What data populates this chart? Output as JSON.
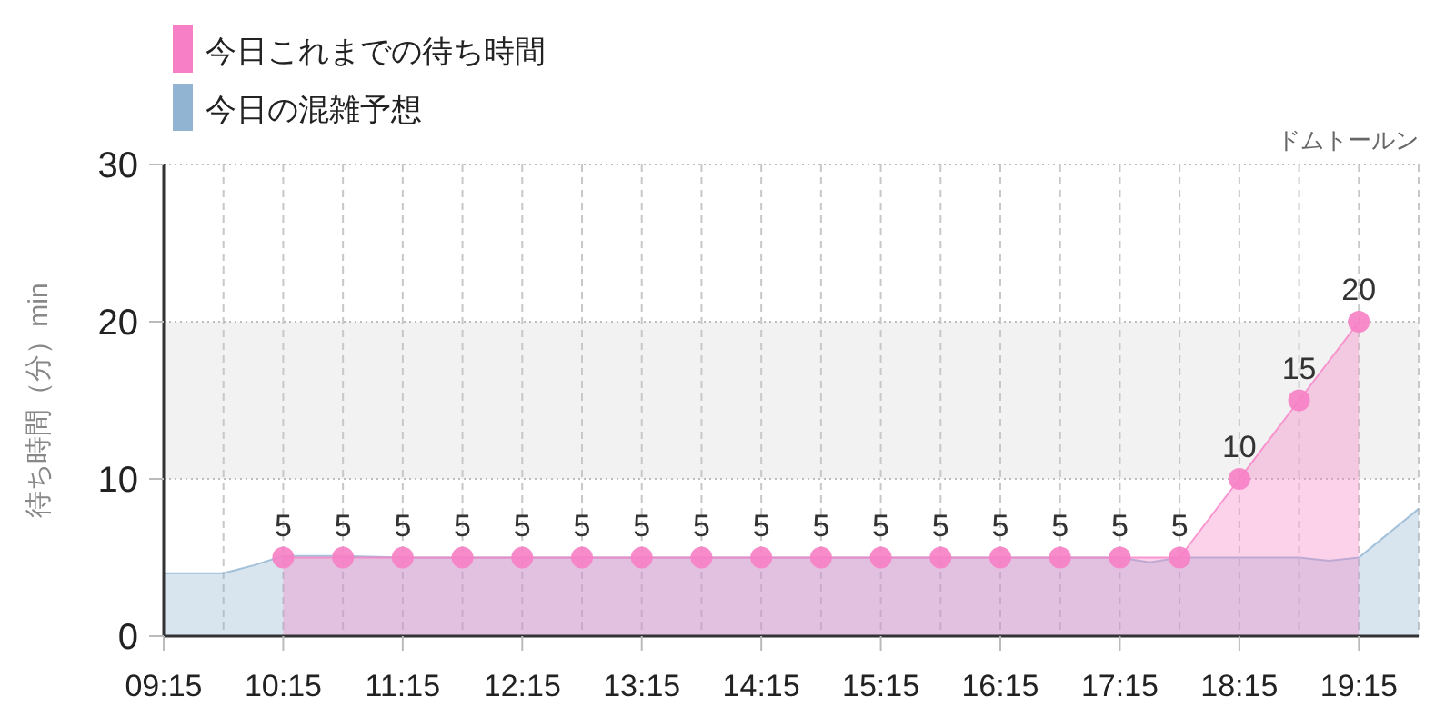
{
  "chart_data": {
    "type": "area",
    "title": "ドムトールン",
    "ylabel": "待ち時間（分）min",
    "xlim": [
      9.25,
      19.75
    ],
    "xticks": [
      {
        "value": 9.25,
        "label": "09:15"
      },
      {
        "value": 9.75,
        "label": null
      },
      {
        "value": 10.25,
        "label": "10:15"
      },
      {
        "value": 10.75,
        "label": null
      },
      {
        "value": 11.25,
        "label": "11:15"
      },
      {
        "value": 11.75,
        "label": null
      },
      {
        "value": 12.25,
        "label": "12:15"
      },
      {
        "value": 12.75,
        "label": null
      },
      {
        "value": 13.25,
        "label": "13:15"
      },
      {
        "value": 13.75,
        "label": null
      },
      {
        "value": 14.25,
        "label": "14:15"
      },
      {
        "value": 14.75,
        "label": null
      },
      {
        "value": 15.25,
        "label": "15:15"
      },
      {
        "value": 15.75,
        "label": null
      },
      {
        "value": 16.25,
        "label": "16:15"
      },
      {
        "value": 16.75,
        "label": null
      },
      {
        "value": 17.25,
        "label": "17:15"
      },
      {
        "value": 17.75,
        "label": null
      },
      {
        "value": 18.25,
        "label": "18:15"
      },
      {
        "value": 18.75,
        "label": null
      },
      {
        "value": 19.25,
        "label": "19:15"
      },
      {
        "value": 19.75,
        "label": null
      }
    ],
    "ylim": [
      0,
      30
    ],
    "yticks": [
      0,
      10,
      20,
      30
    ],
    "grid": true,
    "legend": "top left",
    "bands": [
      {
        "axis": "y",
        "from": 10,
        "to": 20,
        "color": "#f2f2f2"
      }
    ],
    "series": [
      {
        "name": "今日これまでの待ち時間",
        "color": "#f77fc5",
        "marker": "circle",
        "x": [
          10.25,
          10.75,
          11.25,
          11.75,
          12.25,
          12.75,
          13.25,
          13.75,
          14.25,
          14.75,
          15.25,
          15.75,
          16.25,
          16.75,
          17.25,
          17.75,
          18.25,
          18.75,
          19.25
        ],
        "values": [
          5,
          5,
          5,
          5,
          5,
          5,
          5,
          5,
          5,
          5,
          5,
          5,
          5,
          5,
          5,
          5,
          10,
          15,
          20
        ],
        "value_labels": [
          "5",
          "5",
          "5",
          "5",
          "5",
          "5",
          "5",
          "5",
          "5",
          "5",
          "5",
          "5",
          "5",
          "5",
          "5",
          "5",
          "10",
          "15",
          "20"
        ]
      },
      {
        "name": "今日の混雑予想",
        "color": "#90b4d2",
        "marker": "none",
        "x": [
          9.25,
          9.75,
          10.0,
          10.25,
          10.75,
          11.25,
          17.25,
          17.5,
          17.75,
          18.75,
          19.0,
          19.25,
          19.75
        ],
        "values": [
          4.0,
          4.0,
          4.5,
          5.1,
          5.1,
          5.0,
          5.0,
          4.7,
          5.0,
          5.0,
          4.8,
          5.0,
          8.1
        ]
      }
    ]
  }
}
